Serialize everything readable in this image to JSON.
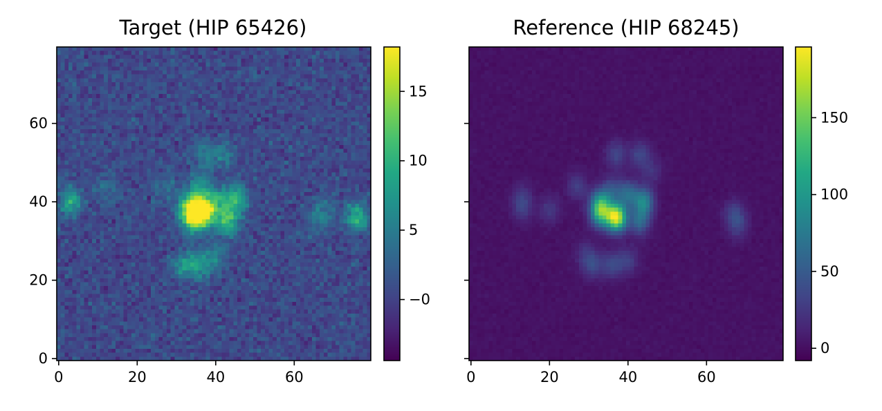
{
  "chart_data": [
    {
      "type": "heatmap",
      "title": "Target (HIP 65426)",
      "xlim": [
        0,
        79
      ],
      "ylim": [
        0,
        79
      ],
      "xticks": [
        "0",
        "20",
        "40",
        "60"
      ],
      "yticks": [
        "0",
        "20",
        "40",
        "60"
      ],
      "colormap": "viridis",
      "colorbar": {
        "min": -4.4,
        "max": 18.2,
        "ticks": [
          "−0",
          "5",
          "10",
          "15"
        ],
        "tick_values": [
          0,
          5,
          10,
          15
        ]
      },
      "features": {
        "peak_value": 18,
        "background_value": 0.6,
        "speckles": [
          {
            "x": 37,
            "y": 37,
            "v": 17.5
          },
          {
            "x": 34,
            "y": 36,
            "v": 13.5
          },
          {
            "x": 33,
            "y": 39,
            "v": 10
          },
          {
            "x": 43,
            "y": 35,
            "v": 11
          },
          {
            "x": 45,
            "y": 41,
            "v": 10
          },
          {
            "x": 40,
            "y": 40,
            "v": 8
          },
          {
            "x": 36,
            "y": 43,
            "v": 7.5
          },
          {
            "x": 32,
            "y": 24,
            "v": 7
          },
          {
            "x": 36,
            "y": 24,
            "v": 6.5
          },
          {
            "x": 40,
            "y": 26,
            "v": 5
          },
          {
            "x": 37,
            "y": 52,
            "v": 5.5
          },
          {
            "x": 42,
            "y": 52,
            "v": 5
          },
          {
            "x": 27,
            "y": 44,
            "v": 4
          },
          {
            "x": 12,
            "y": 43,
            "v": 3.5
          },
          {
            "x": 66,
            "y": 35,
            "v": 4
          },
          {
            "x": 68,
            "y": 38,
            "v": 3.5
          },
          {
            "x": 3,
            "y": 40,
            "v": 9
          },
          {
            "x": 76,
            "y": 36,
            "v": 10
          }
        ]
      }
    },
    {
      "type": "heatmap",
      "title": "Reference (HIP 68245)",
      "xlim": [
        0,
        79
      ],
      "ylim": [
        0,
        79
      ],
      "xticks": [
        "0",
        "20",
        "40",
        "60"
      ],
      "yticks": [],
      "colormap": "viridis",
      "colorbar": {
        "min": -8,
        "max": 196,
        "ticks": [
          "0",
          "50",
          "100",
          "150"
        ],
        "tick_values": [
          0,
          50,
          100,
          150
        ]
      },
      "features": {
        "peak_value": 190,
        "background_value": 2,
        "speckles": [
          {
            "x": 37,
            "y": 36,
            "v": 190
          },
          {
            "x": 33,
            "y": 37,
            "v": 110
          },
          {
            "x": 33,
            "y": 40,
            "v": 80
          },
          {
            "x": 44,
            "y": 40,
            "v": 85
          },
          {
            "x": 43,
            "y": 35,
            "v": 60
          },
          {
            "x": 40,
            "y": 42,
            "v": 60
          },
          {
            "x": 36,
            "y": 43,
            "v": 40
          },
          {
            "x": 31,
            "y": 24,
            "v": 38
          },
          {
            "x": 36,
            "y": 24,
            "v": 38
          },
          {
            "x": 40,
            "y": 25,
            "v": 30
          },
          {
            "x": 37,
            "y": 52,
            "v": 35
          },
          {
            "x": 43,
            "y": 52,
            "v": 35
          },
          {
            "x": 27,
            "y": 44,
            "v": 30
          },
          {
            "x": 13,
            "y": 41,
            "v": 25
          },
          {
            "x": 13,
            "y": 38,
            "v": 22
          },
          {
            "x": 20,
            "y": 38,
            "v": 25
          },
          {
            "x": 67,
            "y": 37,
            "v": 30
          },
          {
            "x": 68,
            "y": 34,
            "v": 28
          },
          {
            "x": 46,
            "y": 48,
            "v": 22
          },
          {
            "x": 29,
            "y": 27,
            "v": 20
          }
        ]
      }
    }
  ]
}
